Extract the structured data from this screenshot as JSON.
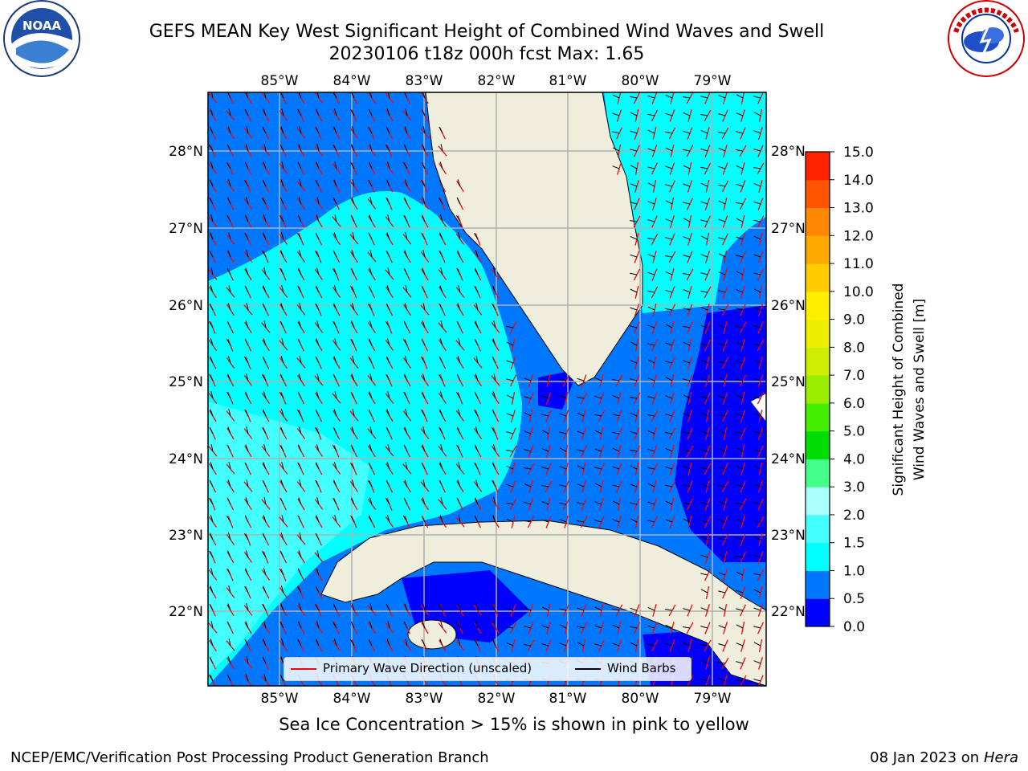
{
  "header": {
    "title_line1": "GEFS MEAN Key West Significant Height of Combined Wind Waves and Swell",
    "title_line2": "20230106 t18z 000h fcst   Max: 1.65"
  },
  "logos": {
    "left": "NOAA",
    "left_ring_text": "NATIONAL OCEANIC AND ATMOSPHERIC ADMINISTRATION · U.S. DEPARTMENT OF COMMERCE",
    "right_ring_text": "NATIONAL WEATHER SERVICE"
  },
  "map": {
    "lon_labels": [
      "85°W",
      "84°W",
      "83°W",
      "82°W",
      "81°W",
      "80°W",
      "79°W"
    ],
    "lat_labels": [
      "28°N",
      "27°N",
      "26°N",
      "25°N",
      "24°N",
      "23°N",
      "22°N"
    ]
  },
  "legend": {
    "wave_label": "Primary Wave Direction (unscaled)",
    "barb_label": "Wind Barbs",
    "wave_color": "#ff0000",
    "barb_color": "#000000"
  },
  "colorbar": {
    "label_line1": "Significant Height of Combined",
    "label_line2": "Wind Waves and Swell [m]",
    "ticks": [
      "0.0",
      "0.5",
      "1.0",
      "1.5",
      "2.0",
      "3.0",
      "4.0",
      "5.0",
      "6.0",
      "7.0",
      "8.0",
      "9.0",
      "10.0",
      "11.0",
      "12.0",
      "13.0",
      "14.0",
      "15.0"
    ],
    "colors": [
      "#0000ff",
      "#0077ff",
      "#00ffff",
      "#44ffff",
      "#aaffff",
      "#44ff88",
      "#00dd00",
      "#44ee00",
      "#99ee00",
      "#ccee00",
      "#eeee00",
      "#ffee00",
      "#ffcc00",
      "#ffaa00",
      "#ff8800",
      "#ff5500",
      "#ff2200"
    ]
  },
  "footer": {
    "note": "Sea Ice Concentration > 15% is shown in pink to yellow",
    "credit_left": "NCEP/EMC/Verification Post Processing Product Generation Branch",
    "credit_right_prefix": "08 Jan 2023 on ",
    "credit_right_host": "Hera"
  }
}
